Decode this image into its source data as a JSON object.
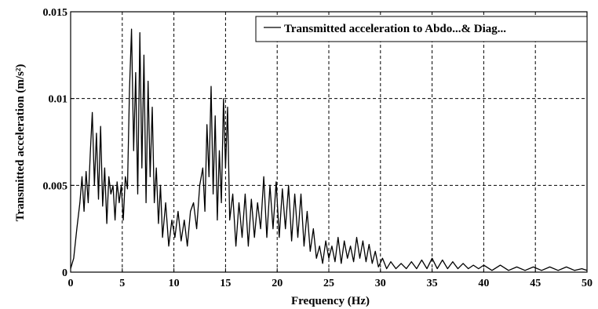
{
  "chart_data": {
    "type": "line",
    "xlabel": "Frequency (Hz)",
    "ylabel": "Transmitted acceleration (m/s²)",
    "xlim": [
      0,
      50
    ],
    "ylim": [
      0,
      0.015
    ],
    "xticks": [
      0,
      5,
      10,
      15,
      20,
      25,
      30,
      35,
      40,
      45,
      50
    ],
    "xtick_labels": [
      "0",
      "5",
      "10",
      "15",
      "20",
      "25",
      "30",
      "35",
      "40",
      "45",
      "50"
    ],
    "yticks": [
      0,
      0.005,
      0.01,
      0.015
    ],
    "ytick_labels": [
      "0",
      "0.005",
      "0.01",
      "0.015"
    ],
    "grid": true,
    "legend_position": "top-right",
    "series": [
      {
        "name": "Transmitted acceleration to Abdo...& Diag...",
        "color": "#000000",
        "x": [
          0,
          0.3,
          0.6,
          0.9,
          1.1,
          1.3,
          1.5,
          1.7,
          1.9,
          2.1,
          2.3,
          2.5,
          2.7,
          2.9,
          3.1,
          3.3,
          3.5,
          3.7,
          3.9,
          4.1,
          4.3,
          4.5,
          4.7,
          4.9,
          5.1,
          5.3,
          5.5,
          5.7,
          5.9,
          6.1,
          6.3,
          6.5,
          6.7,
          6.9,
          7.1,
          7.3,
          7.5,
          7.7,
          7.9,
          8.1,
          8.3,
          8.5,
          8.7,
          8.9,
          9.2,
          9.5,
          9.8,
          10.1,
          10.4,
          10.7,
          11.0,
          11.3,
          11.6,
          11.9,
          12.2,
          12.5,
          12.8,
          13.0,
          13.2,
          13.4,
          13.6,
          13.8,
          14.0,
          14.2,
          14.4,
          14.6,
          14.8,
          15.0,
          15.2,
          15.4,
          15.7,
          16.0,
          16.3,
          16.6,
          16.9,
          17.2,
          17.5,
          17.8,
          18.1,
          18.4,
          18.7,
          19.0,
          19.3,
          19.6,
          19.9,
          20.2,
          20.5,
          20.8,
          21.1,
          21.4,
          21.7,
          22.0,
          22.3,
          22.6,
          22.9,
          23.2,
          23.5,
          23.8,
          24.1,
          24.4,
          24.7,
          25.0,
          25.3,
          25.6,
          25.9,
          26.2,
          26.5,
          26.8,
          27.1,
          27.4,
          27.7,
          28.0,
          28.3,
          28.6,
          28.9,
          29.2,
          29.5,
          29.8,
          30.2,
          30.6,
          31.0,
          31.5,
          32.0,
          32.5,
          33.0,
          33.5,
          34.0,
          34.5,
          35.0,
          35.5,
          36.0,
          36.5,
          37.0,
          37.5,
          38.0,
          38.5,
          39.0,
          39.5,
          40.0,
          40.8,
          41.6,
          42.4,
          43.2,
          44.0,
          44.8,
          45.6,
          46.4,
          47.2,
          48.0,
          48.8,
          49.5,
          50.0
        ],
        "y": [
          0.0002,
          0.0008,
          0.0025,
          0.004,
          0.0055,
          0.0035,
          0.0058,
          0.004,
          0.0068,
          0.0092,
          0.005,
          0.008,
          0.0042,
          0.0084,
          0.0038,
          0.006,
          0.0028,
          0.0055,
          0.0045,
          0.005,
          0.003,
          0.0052,
          0.004,
          0.005,
          0.003,
          0.0055,
          0.0048,
          0.0105,
          0.014,
          0.007,
          0.0115,
          0.0045,
          0.0138,
          0.006,
          0.0125,
          0.004,
          0.011,
          0.0055,
          0.0095,
          0.004,
          0.006,
          0.0028,
          0.005,
          0.002,
          0.004,
          0.0015,
          0.003,
          0.002,
          0.0035,
          0.0018,
          0.003,
          0.0015,
          0.0035,
          0.004,
          0.0025,
          0.005,
          0.006,
          0.0035,
          0.0085,
          0.0055,
          0.0107,
          0.0045,
          0.009,
          0.003,
          0.007,
          0.004,
          0.01,
          0.006,
          0.0095,
          0.003,
          0.0045,
          0.0015,
          0.004,
          0.002,
          0.0045,
          0.0015,
          0.0042,
          0.002,
          0.004,
          0.0025,
          0.0055,
          0.002,
          0.005,
          0.0025,
          0.0052,
          0.002,
          0.0048,
          0.0025,
          0.005,
          0.0018,
          0.0045,
          0.002,
          0.0045,
          0.0015,
          0.0035,
          0.0012,
          0.0025,
          0.0008,
          0.0015,
          0.0005,
          0.0018,
          0.0008,
          0.0015,
          0.0006,
          0.002,
          0.0005,
          0.0018,
          0.0008,
          0.0015,
          0.0006,
          0.002,
          0.0008,
          0.0018,
          0.0006,
          0.0016,
          0.0005,
          0.0012,
          0.0003,
          0.0008,
          0.0002,
          0.0006,
          0.0002,
          0.0005,
          0.0002,
          0.0006,
          0.0002,
          0.0007,
          0.0002,
          0.0008,
          0.0002,
          0.0007,
          0.0002,
          0.0006,
          0.0002,
          0.0005,
          0.0002,
          0.0004,
          0.0002,
          0.0004,
          0.0001,
          0.0004,
          0.0001,
          0.0003,
          0.0001,
          0.0003,
          0.0001,
          0.0003,
          0.0001,
          0.0003,
          0.0001,
          0.0002,
          0.0001
        ]
      }
    ]
  }
}
